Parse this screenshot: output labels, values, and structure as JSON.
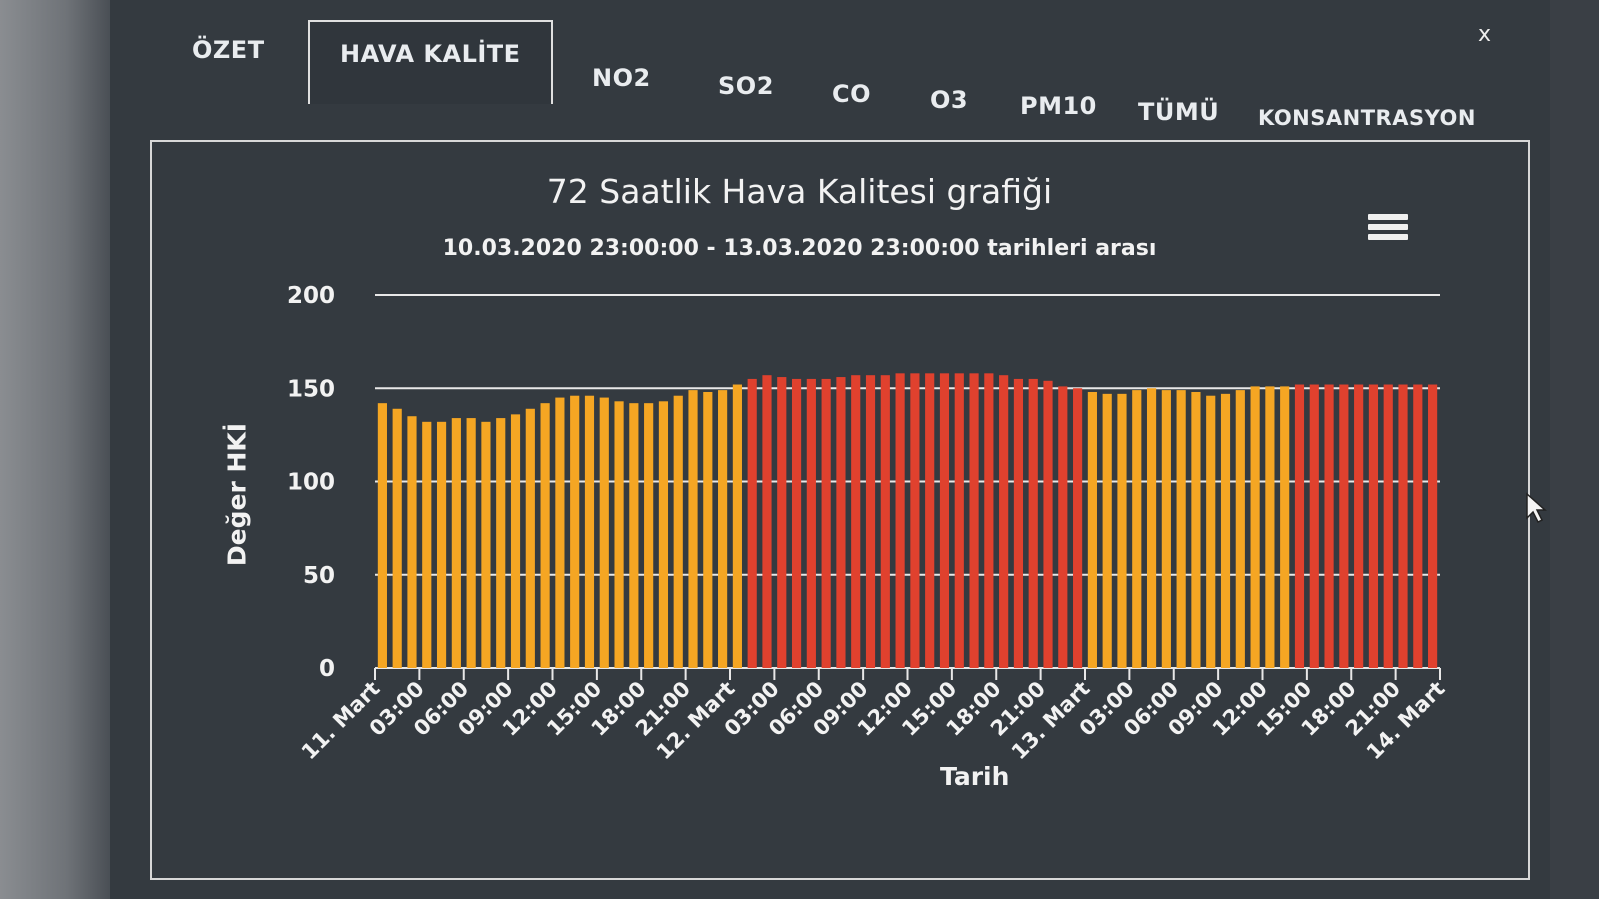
{
  "tabs": [
    {
      "label": "ÖZET",
      "active": false
    },
    {
      "label": "HAVA KALİTE",
      "active": true
    },
    {
      "label": "NO2",
      "active": false
    },
    {
      "label": "SO2",
      "active": false
    },
    {
      "label": "CO",
      "active": false
    },
    {
      "label": "O3",
      "active": false
    },
    {
      "label": "PM10",
      "active": false
    },
    {
      "label": "TÜMÜ",
      "active": false
    },
    {
      "label": "KONSANTRASYON",
      "active": false
    }
  ],
  "close_label": "x",
  "menu_icon": "hamburger-menu-icon",
  "colors": {
    "moderate_bar": "#f5a623",
    "unhealthy_bar": "#e0412e",
    "background": "#343a40",
    "text": "#f2f2f2"
  },
  "chart_data": {
    "type": "bar",
    "title": "72 Saatlik Hava Kalitesi grafiği",
    "subtitle": "10.03.2020 23:00:00 - 13.03.2020 23:00:00 tarihleri arası",
    "xlabel": "Tarih",
    "ylabel": "Değer HKİ",
    "ylim": [
      0,
      200
    ],
    "yticks": [
      "0",
      "50",
      "100",
      "150",
      "200"
    ],
    "xtick_labels": [
      "11. Mart",
      "03:00",
      "06:00",
      "09:00",
      "12:00",
      "15:00",
      "18:00",
      "21:00",
      "12. Mart",
      "03:00",
      "06:00",
      "09:00",
      "12:00",
      "15:00",
      "18:00",
      "21:00",
      "13. Mart",
      "03:00",
      "06:00",
      "09:00",
      "12:00",
      "15:00",
      "18:00",
      "21:00",
      "14. Mart"
    ],
    "grid": true,
    "legend": "none",
    "values": [
      142,
      139,
      135,
      132,
      132,
      134,
      134,
      132,
      134,
      136,
      139,
      142,
      145,
      146,
      146,
      145,
      143,
      142,
      142,
      143,
      146,
      149,
      148,
      149,
      152,
      155,
      157,
      156,
      155,
      155,
      155,
      156,
      157,
      157,
      157,
      158,
      158,
      158,
      158,
      158,
      158,
      158,
      157,
      155,
      155,
      154,
      151,
      150,
      148,
      147,
      147,
      149,
      150,
      149,
      149,
      148,
      146,
      147,
      149,
      151,
      151,
      151,
      152,
      152,
      152,
      152,
      152,
      152,
      152,
      152,
      152,
      152
    ],
    "colors": [
      "moderate",
      "moderate",
      "moderate",
      "moderate",
      "moderate",
      "moderate",
      "moderate",
      "moderate",
      "moderate",
      "moderate",
      "moderate",
      "moderate",
      "moderate",
      "moderate",
      "moderate",
      "moderate",
      "moderate",
      "moderate",
      "moderate",
      "moderate",
      "moderate",
      "moderate",
      "moderate",
      "moderate",
      "moderate",
      "unhealthy",
      "unhealthy",
      "unhealthy",
      "unhealthy",
      "unhealthy",
      "unhealthy",
      "unhealthy",
      "unhealthy",
      "unhealthy",
      "unhealthy",
      "unhealthy",
      "unhealthy",
      "unhealthy",
      "unhealthy",
      "unhealthy",
      "unhealthy",
      "unhealthy",
      "unhealthy",
      "unhealthy",
      "unhealthy",
      "unhealthy",
      "unhealthy",
      "unhealthy",
      "moderate",
      "moderate",
      "moderate",
      "moderate",
      "moderate",
      "moderate",
      "moderate",
      "moderate",
      "moderate",
      "moderate",
      "moderate",
      "moderate",
      "moderate",
      "moderate",
      "unhealthy",
      "unhealthy",
      "unhealthy",
      "unhealthy",
      "unhealthy",
      "unhealthy",
      "unhealthy",
      "unhealthy",
      "unhealthy",
      "unhealthy"
    ]
  }
}
